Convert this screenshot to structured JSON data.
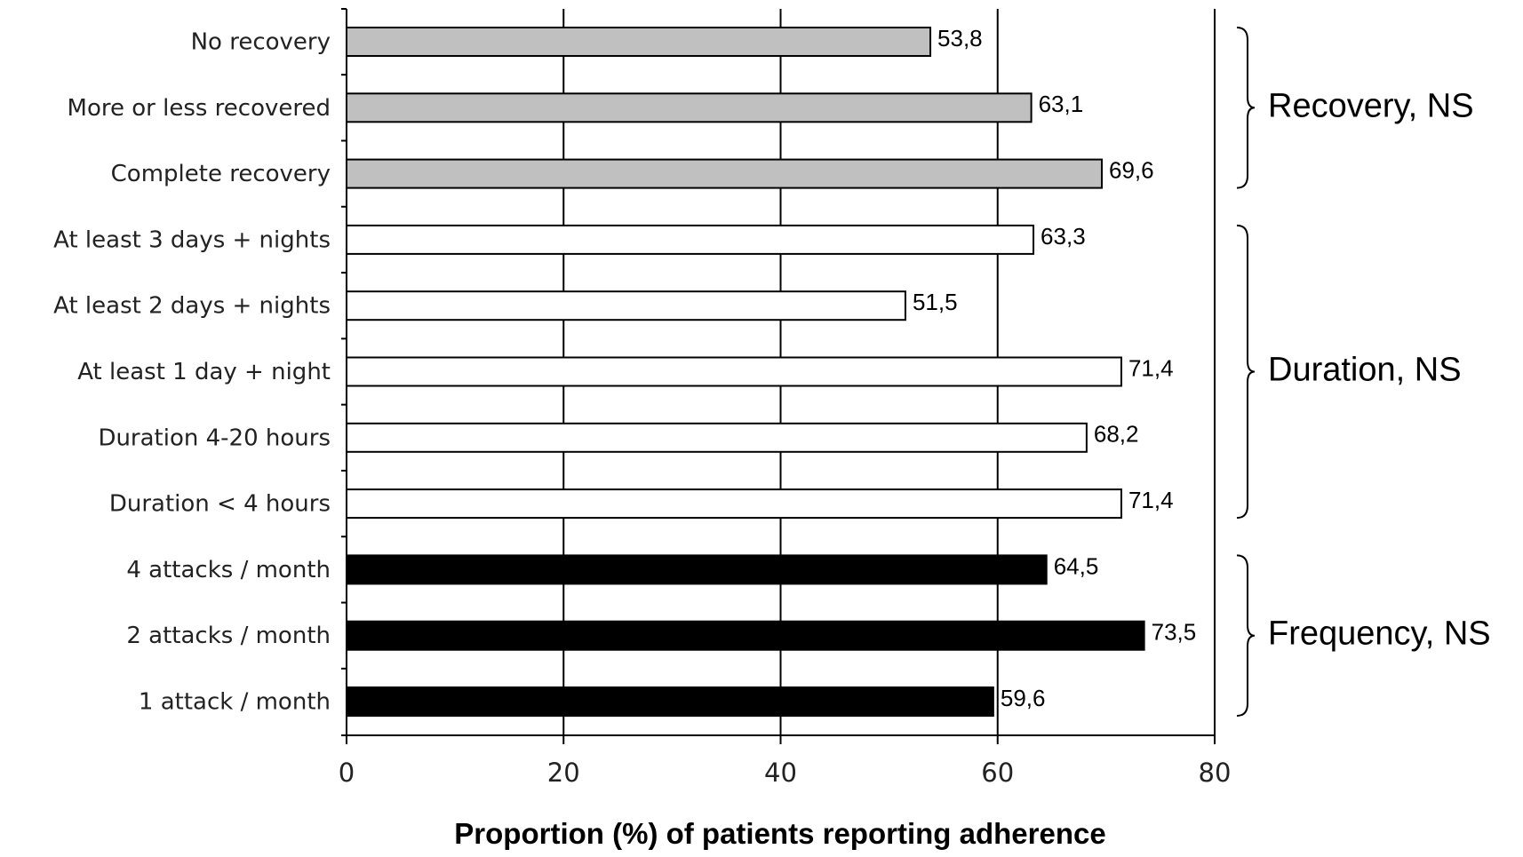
{
  "chart_data": {
    "type": "bar",
    "orientation": "horizontal",
    "xlabel": "Proportion (%) of patients reporting adherence",
    "ylabel": "",
    "xlim": [
      0,
      80
    ],
    "xticks": [
      0,
      20,
      40,
      60,
      80
    ],
    "grid": "vertical",
    "categories": [
      "No recovery",
      "More or less recovered",
      "Complete recovery",
      "At least 3 days + nights",
      "At least 2 days + nights",
      "At least 1 day + night",
      "Duration 4-20 hours",
      "Duration < 4 hours",
      "4 attacks / month",
      "2 attacks / month",
      "1 attack / month"
    ],
    "values": [
      53.8,
      63.1,
      69.6,
      63.3,
      51.5,
      71.4,
      68.2,
      71.4,
      64.5,
      73.5,
      59.6
    ],
    "value_labels": [
      "53,8",
      "63,1",
      "69,6",
      "63,3",
      "51,5",
      "71,4",
      "68,2",
      "71,4",
      "64,5",
      "73,5",
      "59,6"
    ],
    "groups": [
      {
        "label": "Recovery, NS",
        "start": 0,
        "end": 2,
        "color": "#c0c0c0"
      },
      {
        "label": "Duration, NS",
        "start": 3,
        "end": 7,
        "color": "#ffffff"
      },
      {
        "label": "Frequency, NS",
        "start": 8,
        "end": 10,
        "color": "#000000"
      }
    ]
  }
}
